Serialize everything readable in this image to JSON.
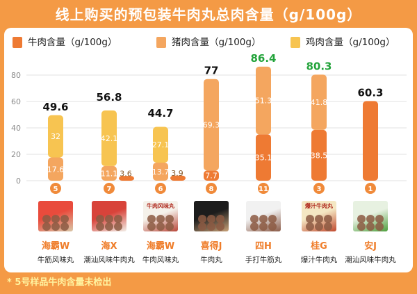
{
  "title": "线上购买的预包装牛肉丸总肉含量（g/100g）",
  "footnote": "* 5号样品牛肉含量未检出",
  "colors": {
    "beef": "#ee7a33",
    "pork": "#f4a65f",
    "chicken": "#f7c451",
    "green_total": "#22a33a",
    "badge": "#f08a3a"
  },
  "chart_data": {
    "type": "bar",
    "stacked": true,
    "legend": [
      "牛肉含量（g/100g）",
      "猪肉含量（g/100g）",
      "鸡肉含量（g/100g）"
    ],
    "legend_position": "top",
    "y_ticks": [
      "0",
      "20",
      "40",
      "60",
      "80"
    ],
    "ylim": [
      0,
      100
    ],
    "grid": true,
    "categories": [
      "海霸W",
      "海X",
      "海霸W",
      "喜得J",
      "四H",
      "桂G",
      "安J"
    ],
    "subtitles": [
      "牛筋风味丸",
      "潮汕风味牛肉丸",
      "牛肉风味丸",
      "牛肉丸",
      "手打牛筋丸",
      "爆汁牛肉丸",
      "潮汕风味牛肉丸"
    ],
    "sample_ids": [
      "5",
      "7",
      "6",
      "8",
      "11",
      "3",
      "1"
    ],
    "samples": [
      {
        "total": "49.6",
        "total_green": false,
        "beef": null,
        "pork": 17.6,
        "chicken": 32,
        "labels": {
          "pork": "17.6",
          "chicken": "32"
        }
      },
      {
        "total": "56.8",
        "total_green": false,
        "beef": 3.6,
        "pork": 11.1,
        "chicken": 42.1,
        "labels": {
          "beef": "3.6",
          "pork": "11.1",
          "chicken": "42.1"
        }
      },
      {
        "total": "44.7",
        "total_green": false,
        "beef": 3.9,
        "pork": 13.7,
        "chicken": 27.1,
        "labels": {
          "beef": "3.9",
          "pork": "13.7",
          "chicken": "27.1"
        }
      },
      {
        "total": "77",
        "total_green": false,
        "beef": 7.7,
        "pork": 69.3,
        "chicken": null,
        "labels": {
          "beef": "7.7",
          "pork": "69.3"
        }
      },
      {
        "total": "86.4",
        "total_green": true,
        "beef": 35.1,
        "pork": 51.3,
        "chicken": null,
        "labels": {
          "beef": "35.1",
          "pork": "51.3"
        }
      },
      {
        "total": "80.3",
        "total_green": true,
        "beef": 38.5,
        "pork": 41.8,
        "chicken": null,
        "labels": {
          "beef": "38.5",
          "pork": "41.8"
        }
      },
      {
        "total": "60.3",
        "total_green": false,
        "beef": 60.3,
        "pork": null,
        "chicken": null,
        "labels": {}
      }
    ]
  },
  "packages": [
    {
      "logo_text": "",
      "colors": [
        "#e94b3c",
        "#d9c7a8"
      ]
    },
    {
      "logo_text": "",
      "colors": [
        "#d8433a",
        "#f2efe8"
      ]
    },
    {
      "logo_text": "牛肉风味丸",
      "colors": [
        "#f5f1ea",
        "#b9473a"
      ]
    },
    {
      "logo_text": "",
      "colors": [
        "#1c1c1c",
        "#c9a37a"
      ]
    },
    {
      "logo_text": "",
      "colors": [
        "#f1f1f1",
        "#8b5c49"
      ]
    },
    {
      "logo_text": "爆汁牛肉丸",
      "colors": [
        "#f4e7c3",
        "#c14a2f"
      ]
    },
    {
      "logo_text": "",
      "colors": [
        "#e7f1e1",
        "#4e9f3d"
      ]
    }
  ]
}
